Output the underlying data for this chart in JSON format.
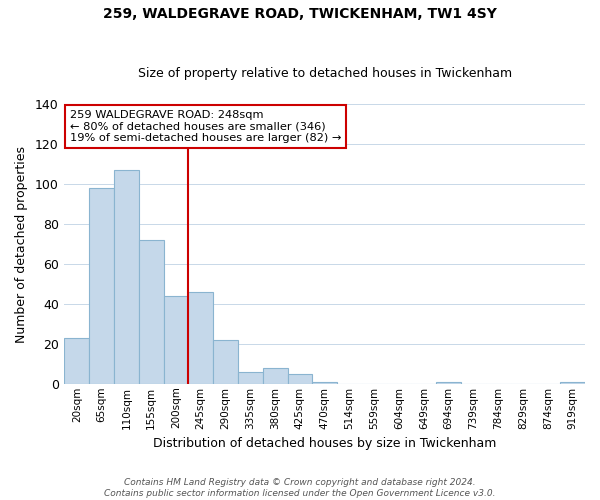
{
  "title": "259, WALDEGRAVE ROAD, TWICKENHAM, TW1 4SY",
  "subtitle": "Size of property relative to detached houses in Twickenham",
  "xlabel": "Distribution of detached houses by size in Twickenham",
  "ylabel": "Number of detached properties",
  "bar_color": "#c5d8ea",
  "bar_edge_color": "#8ab4d0",
  "categories": [
    "20sqm",
    "65sqm",
    "110sqm",
    "155sqm",
    "200sqm",
    "245sqm",
    "290sqm",
    "335sqm",
    "380sqm",
    "425sqm",
    "470sqm",
    "514sqm",
    "559sqm",
    "604sqm",
    "649sqm",
    "694sqm",
    "739sqm",
    "784sqm",
    "829sqm",
    "874sqm",
    "919sqm"
  ],
  "values": [
    23,
    98,
    107,
    72,
    44,
    46,
    22,
    6,
    8,
    5,
    1,
    0,
    0,
    0,
    0,
    1,
    0,
    0,
    0,
    0,
    1
  ],
  "ylim": [
    0,
    140
  ],
  "yticks": [
    0,
    20,
    40,
    60,
    80,
    100,
    120,
    140
  ],
  "vline_x": 4.5,
  "vline_color": "#cc0000",
  "annotation_line1": "259 WALDEGRAVE ROAD: 248sqm",
  "annotation_line2": "← 80% of detached houses are smaller (346)",
  "annotation_line3": "19% of semi-detached houses are larger (82) →",
  "annotation_box_color": "#ffffff",
  "annotation_box_edge": "#cc0000",
  "footer_line1": "Contains HM Land Registry data © Crown copyright and database right 2024.",
  "footer_line2": "Contains public sector information licensed under the Open Government Licence v3.0.",
  "background_color": "#ffffff",
  "grid_color": "#c8d8e8"
}
